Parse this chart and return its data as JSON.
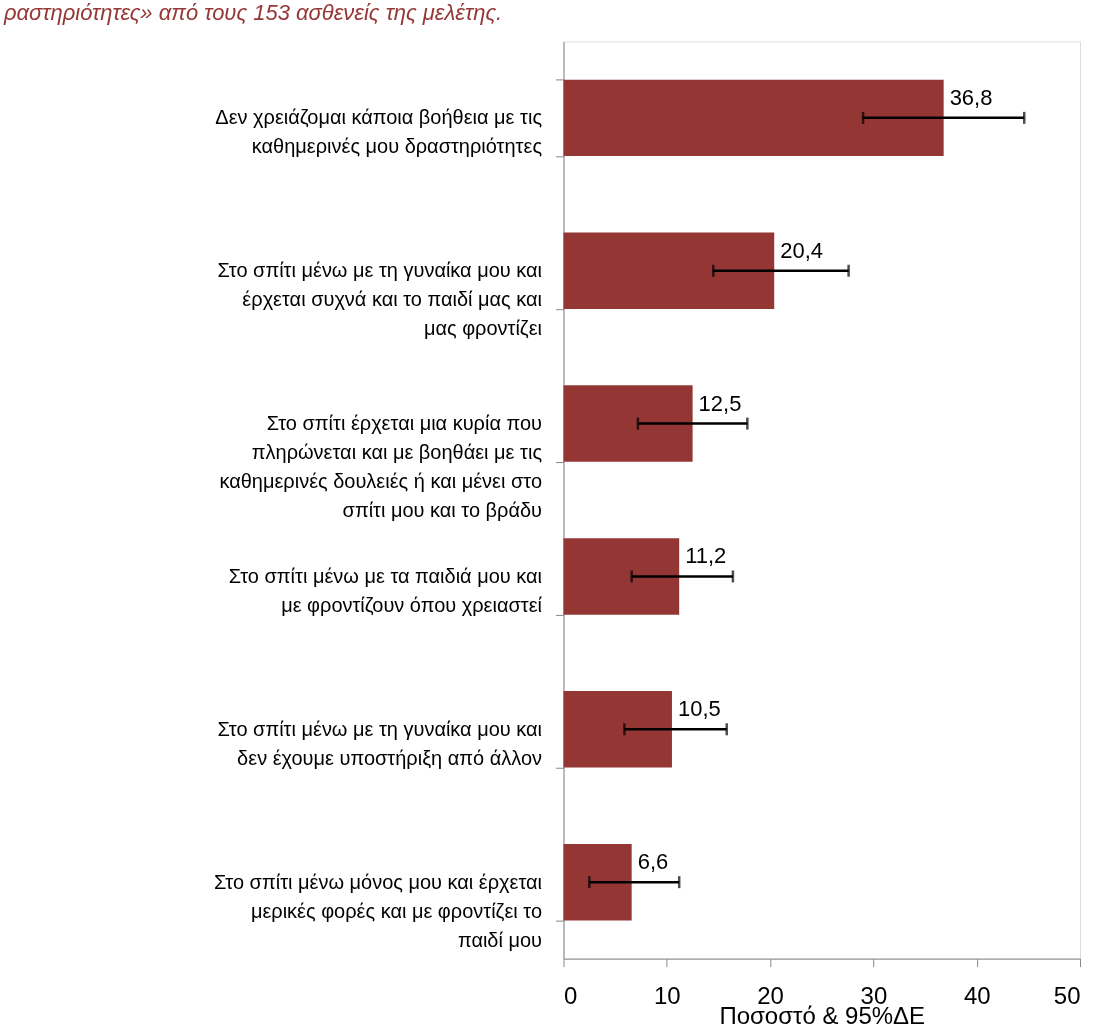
{
  "chart_data": {
    "type": "bar",
    "orientation": "horizontal",
    "title": "ραστηριότητες» από τους 153 ασθενείς της μελέτης.",
    "xlabel": "Ποσοστό & 95%ΔΕ",
    "categories": [
      "Δεν χρειάζομαι κάποια βοήθεια με τις καθημερινές μου δραστηριότητες",
      "Στο σπίτι μένω με τη γυναίκα μου και έρχεται συχνά και το παιδί μας και μας φροντίζει",
      "Στο σπίτι έρχεται μια κυρία που πληρώνεται και με βοηθάει  με τις καθημερινές δουλειές ή και μένει στο σπίτι μου και το βράδυ",
      "Στο σπίτι μένω με τα παιδιά μου και με φροντίζουν όπου χρειαστεί",
      "Στο σπίτι μένω  με τη γυναίκα μου και δεν έχουμε υποστήριξη από άλλον",
      "Στο σπίτι μένω μόνος μου και έρχεται μερικές φορές και με φροντίζει το παιδί μου"
    ],
    "values": [
      36.8,
      20.4,
      12.5,
      11.2,
      10.5,
      6.6
    ],
    "value_labels": [
      "36,8",
      "20,4",
      "12,5",
      "11,2",
      "10,5",
      "6,6"
    ],
    "errors": [
      [
        29.0,
        44.6
      ],
      [
        14.5,
        27.6
      ],
      [
        7.2,
        17.8
      ],
      [
        6.6,
        16.4
      ],
      [
        5.9,
        15.8
      ],
      [
        2.5,
        11.2
      ]
    ],
    "color": "#943634",
    "xlim": [
      0,
      50
    ],
    "xticks": [
      0,
      10,
      20,
      30,
      40,
      50
    ],
    "grid": false
  }
}
